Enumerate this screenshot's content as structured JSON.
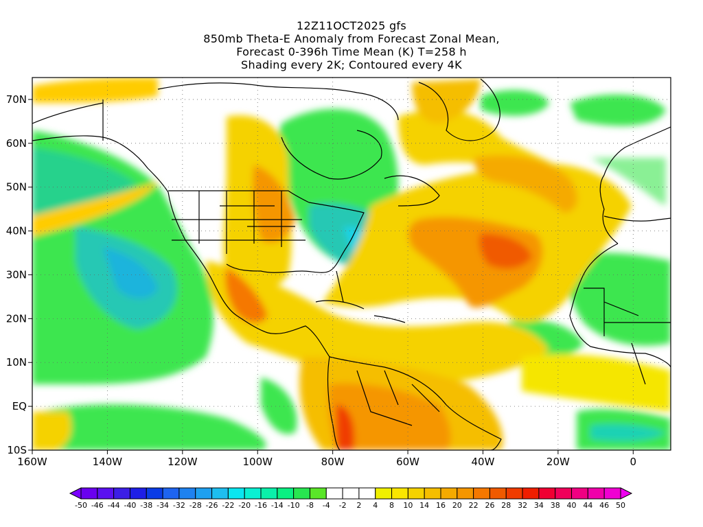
{
  "header": {
    "line1": "12Z11OCT2025 gfs",
    "line2": "850mb Theta-E Anomaly from Forecast Zonal Mean,",
    "line3": "Forecast 0-396h Time Mean (K) T=258 h",
    "line4": "Shading every 2K; Contoured every 4K"
  },
  "map": {
    "lon_range": [
      -160,
      10
    ],
    "lat_range": [
      -10,
      75
    ],
    "lon_ticks": [
      {
        "value": -160,
        "label": "160W"
      },
      {
        "value": -140,
        "label": "140W"
      },
      {
        "value": -120,
        "label": "120W"
      },
      {
        "value": -100,
        "label": "100W"
      },
      {
        "value": -80,
        "label": "80W"
      },
      {
        "value": -60,
        "label": "60W"
      },
      {
        "value": -40,
        "label": "40W"
      },
      {
        "value": -20,
        "label": "20W"
      },
      {
        "value": 0,
        "label": "0"
      }
    ],
    "lat_ticks": [
      {
        "value": 70,
        "label": "70N"
      },
      {
        "value": 60,
        "label": "60N"
      },
      {
        "value": 50,
        "label": "50N"
      },
      {
        "value": 40,
        "label": "40N"
      },
      {
        "value": 30,
        "label": "30N"
      },
      {
        "value": 20,
        "label": "20N"
      },
      {
        "value": 10,
        "label": "10N"
      },
      {
        "value": 0,
        "label": "EQ"
      },
      {
        "value": -10,
        "label": "10S"
      }
    ],
    "grid": true
  },
  "colorbar": {
    "labels": [
      "-50",
      "-46",
      "-44",
      "-40",
      "-38",
      "-34",
      "-32",
      "-28",
      "-26",
      "-22",
      "-20",
      "-16",
      "-14",
      "-10",
      "-8",
      "-4",
      "-2",
      "2",
      "4",
      "8",
      "10",
      "14",
      "16",
      "20",
      "22",
      "26",
      "28",
      "32",
      "34",
      "38",
      "40",
      "44",
      "46",
      "50"
    ],
    "colors": [
      "#7a00ff",
      "#6a00f0",
      "#5a10f0",
      "#3c1ee6",
      "#1e1ee6",
      "#0a3ce6",
      "#1e64f0",
      "#1e82f0",
      "#1ea0f0",
      "#1ebef0",
      "#0ae6f0",
      "#0af0d2",
      "#0af0aa",
      "#0af082",
      "#28e650",
      "#5ae628",
      "#ffffff",
      "#ffffff",
      "#ffffff",
      "#f0f000",
      "#fae600",
      "#f5d200",
      "#f5be00",
      "#f5aa00",
      "#f59600",
      "#f57800",
      "#f05a00",
      "#f03c00",
      "#f01e00",
      "#f00032",
      "#f0005a",
      "#f00082",
      "#f000aa",
      "#f000d2",
      "#f000f0"
    ]
  }
}
